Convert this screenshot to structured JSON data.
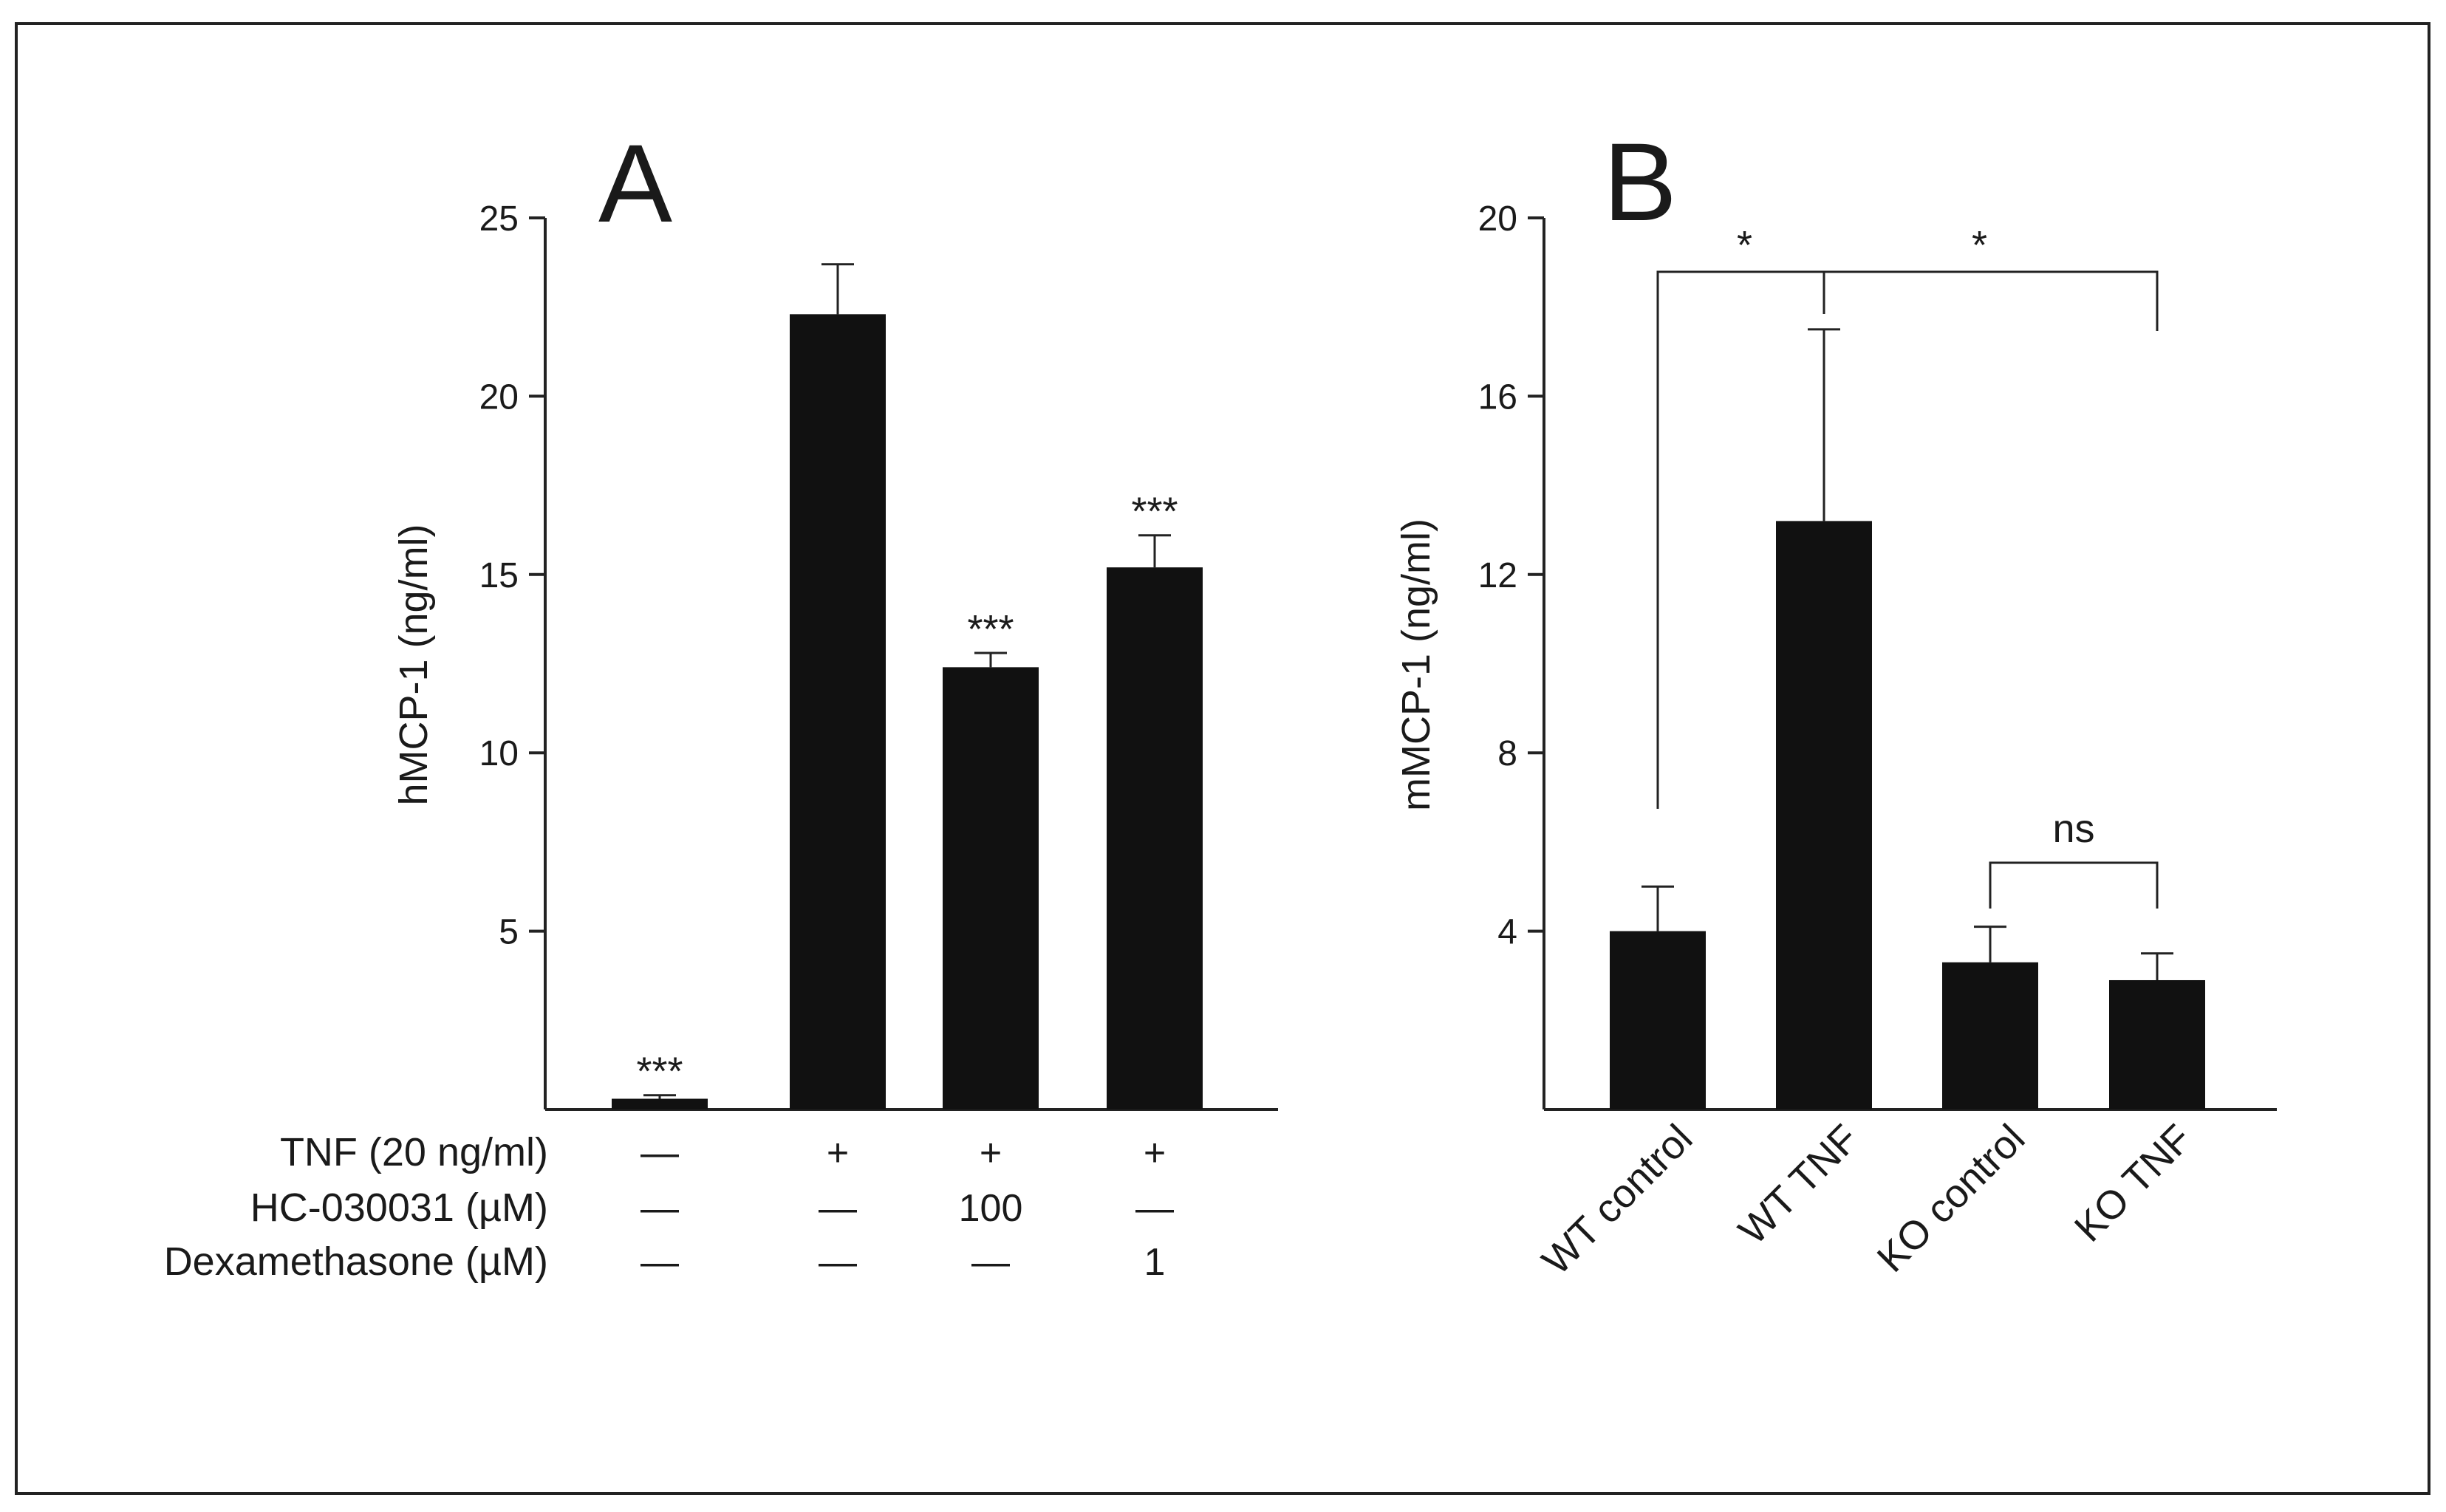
{
  "chart_data": [
    {
      "panel": "A",
      "type": "bar",
      "ylabel": "hMCP-1 (ng/ml)",
      "ylim": [
        0,
        25
      ],
      "yticks": [
        5,
        10,
        15,
        20,
        25
      ],
      "bar_color": "#111111",
      "categories": [
        "TNF -",
        "TNF +",
        "TNF + HC-030031 100",
        "TNF + Dexamethasone 1"
      ],
      "values": [
        0.3,
        22.3,
        12.4,
        15.2
      ],
      "errors": [
        0.1,
        1.4,
        0.4,
        0.9
      ],
      "significance": [
        "***",
        "",
        "***",
        "***"
      ],
      "condition_table": {
        "rows": [
          {
            "label": "TNF (20 ng/ml)",
            "values": [
              "—",
              "+",
              "+",
              "+"
            ]
          },
          {
            "label": "HC-030031 (µM)",
            "values": [
              "—",
              "—",
              "100",
              "—"
            ]
          },
          {
            "label": "Dexamethasone (µM)",
            "values": [
              "—",
              "—",
              "—",
              "1"
            ]
          }
        ]
      }
    },
    {
      "panel": "B",
      "type": "bar",
      "ylabel": "mMCP-1 (ng/ml)",
      "ylim": [
        0,
        20
      ],
      "yticks": [
        4,
        8,
        12,
        16,
        20
      ],
      "bar_color": "#111111",
      "categories": [
        "WT control",
        "WT TNF",
        "KO control",
        "KO TNF"
      ],
      "values": [
        4.0,
        13.2,
        3.3,
        2.9
      ],
      "errors": [
        1.0,
        4.3,
        0.8,
        0.6
      ],
      "brackets": [
        {
          "from": 0,
          "to": 1,
          "label": "*"
        },
        {
          "from": 1,
          "to": 3,
          "label": "*"
        },
        {
          "from": 2,
          "to": 3,
          "label": "ns"
        }
      ]
    }
  ]
}
